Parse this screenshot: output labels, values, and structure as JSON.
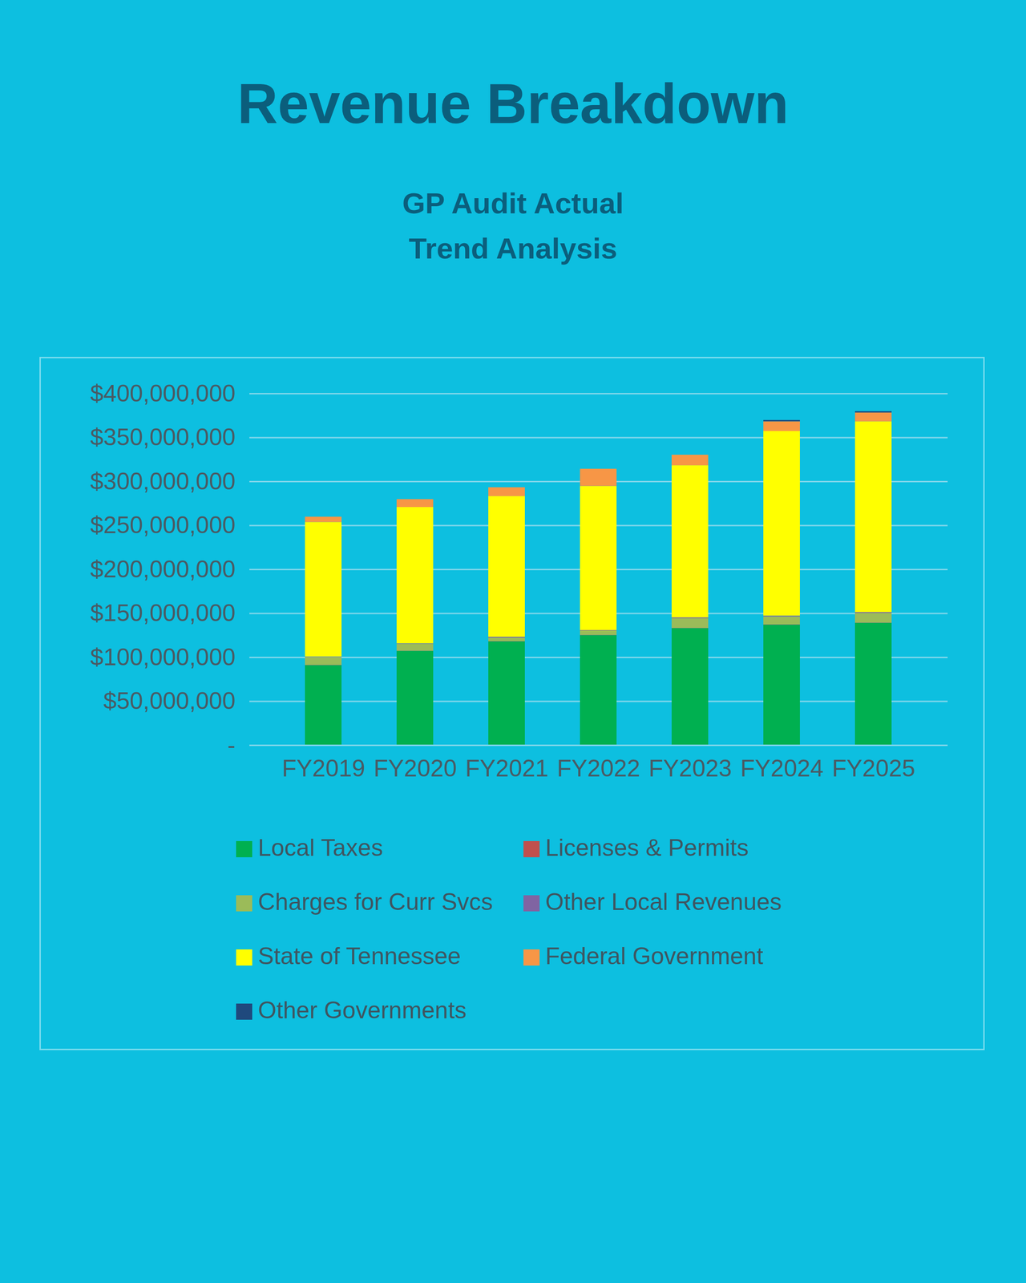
{
  "chart_data": {
    "type": "bar",
    "stacked": true,
    "title": "Revenue Breakdown",
    "subtitle": "GP Audit Actual\nTrend Analysis",
    "categories": [
      "FY2019",
      "FY2020",
      "FY2021",
      "FY2022",
      "FY2023",
      "FY2024",
      "FY2025"
    ],
    "series": [
      {
        "name": "Local Taxes",
        "color": "#00b050",
        "values": [
          91000000,
          107000000,
          118000000,
          125000000,
          133000000,
          137000000,
          139000000
        ]
      },
      {
        "name": "Licenses & Permits",
        "color": "#c0504d",
        "values": [
          300000,
          300000,
          300000,
          300000,
          300000,
          300000,
          300000
        ]
      },
      {
        "name": "Charges for Curr Svcs",
        "color": "#9bbb59",
        "values": [
          9000000,
          8000000,
          4000000,
          5000000,
          11000000,
          9000000,
          11000000
        ]
      },
      {
        "name": "Other Local Revenues",
        "color": "#8064a2",
        "values": [
          500000,
          500000,
          1000000,
          500000,
          1000000,
          1000000,
          1000000
        ]
      },
      {
        "name": "State of Tennessee",
        "color": "#ffff00",
        "values": [
          153000000,
          155000000,
          160000000,
          164000000,
          173000000,
          210000000,
          217000000
        ]
      },
      {
        "name": "Federal Government",
        "color": "#f79646",
        "values": [
          6000000,
          9000000,
          10000000,
          19500000,
          12000000,
          11000000,
          10000000
        ]
      },
      {
        "name": "Other Governments",
        "color": "#1f497d",
        "values": [
          0,
          0,
          0,
          0,
          0,
          1500000,
          1500000
        ]
      }
    ],
    "ylim": [
      0,
      400000000
    ],
    "yticks": [
      {
        "value": 0,
        "label": "-"
      },
      {
        "value": 50000000,
        "label": "$50,000,000"
      },
      {
        "value": 100000000,
        "label": "$100,000,000"
      },
      {
        "value": 150000000,
        "label": "$150,000,000"
      },
      {
        "value": 200000000,
        "label": "$200,000,000"
      },
      {
        "value": 250000000,
        "label": "$250,000,000"
      },
      {
        "value": 300000000,
        "label": "$300,000,000"
      },
      {
        "value": 350000000,
        "label": "$350,000,000"
      },
      {
        "value": 400000000,
        "label": "$400,000,000"
      }
    ],
    "grid": true,
    "legend": "bottom"
  }
}
